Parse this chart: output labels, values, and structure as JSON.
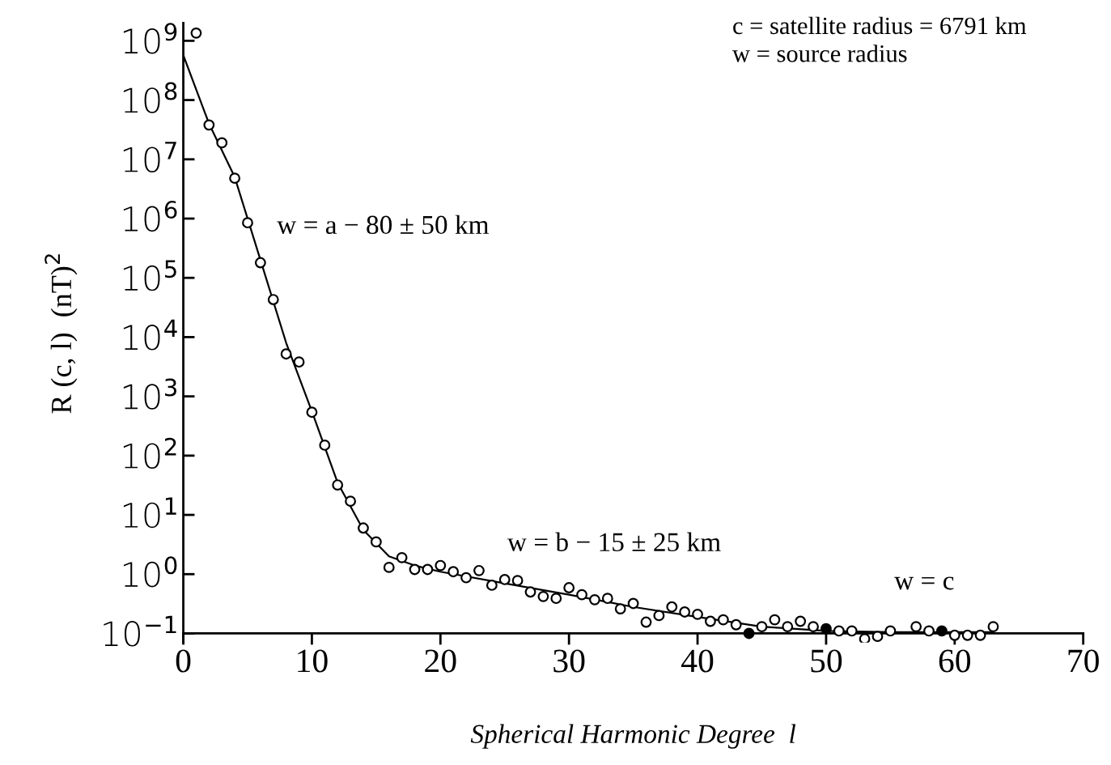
{
  "chart_data": {
    "type": "scatter",
    "xlabel": "Spherical Harmonic Degree  l",
    "ylabel": "R (c, l)  (nT)$^{2}$",
    "log": "y",
    "grid": false,
    "marker": "circle",
    "xlim": [
      0,
      70
    ],
    "xticks": [
      0,
      10,
      20,
      30,
      40,
      50,
      60,
      70
    ],
    "ylim": [
      0.07,
      2000000000.0
    ],
    "yticks": [
      {
        "value": 0.1,
        "label": "10$^{−1}$"
      },
      {
        "value": 1,
        "label": "10$^{0}$"
      },
      {
        "value": 10,
        "label": "10$^{1}$"
      },
      {
        "value": 100,
        "label": "10$^{2}$"
      },
      {
        "value": 1000,
        "label": "10$^{3}$"
      },
      {
        "value": 10000,
        "label": "10$^{4}$"
      },
      {
        "value": 100000,
        "label": "10$^{5}$"
      },
      {
        "value": 1000000,
        "label": "10$^{6}$"
      },
      {
        "value": 10000000,
        "label": "10$^{7}$"
      },
      {
        "value": 100000000,
        "label": "10$^{8}$"
      },
      {
        "value": 1000000000,
        "label": "10$^{9}$"
      }
    ],
    "series": [
      {
        "type": "line",
        "color": "#000000",
        "marker": "none",
        "x": [
          0,
          2,
          4,
          6,
          8,
          10,
          12,
          14,
          16,
          18,
          20,
          25,
          30,
          35,
          40,
          45,
          50,
          55,
          63
        ],
        "values": [
          570000000.0,
          40000000.0,
          5000000.0,
          200000.0,
          8000.0,
          560,
          35,
          5.6,
          2.0,
          1.4,
          1.1,
          0.7,
          0.45,
          0.28,
          0.19,
          0.13,
          0.11,
          0.105,
          0.105
        ]
      },
      {
        "color": "#ffffff",
        "x": [
          1,
          2,
          3,
          4,
          5,
          6,
          7,
          8,
          9,
          10,
          11,
          12,
          13,
          14,
          15,
          16,
          17,
          18,
          19,
          20,
          21,
          22,
          23,
          24,
          25,
          26,
          27,
          28,
          29,
          30,
          31,
          32,
          33,
          34,
          35,
          36,
          37,
          38,
          39,
          40,
          41,
          42,
          43,
          45,
          46,
          47,
          48,
          49,
          51,
          52,
          53,
          54,
          55,
          57,
          58,
          60,
          61,
          62,
          63
        ],
        "values": [
          1350000000.0,
          38000000.0,
          19000000.0,
          4800000.0,
          850000.0,
          180000.0,
          43000.0,
          5200.0,
          3800.0,
          540,
          150,
          32,
          17,
          6.0,
          3.5,
          1.3,
          1.9,
          1.2,
          1.2,
          1.4,
          1.1,
          0.87,
          1.15,
          0.65,
          0.81,
          0.78,
          0.5,
          0.42,
          0.39,
          0.59,
          0.45,
          0.37,
          0.39,
          0.26,
          0.32,
          0.155,
          0.2,
          0.28,
          0.23,
          0.21,
          0.16,
          0.17,
          0.14,
          0.13,
          0.17,
          0.13,
          0.16,
          0.13,
          0.11,
          0.11,
          0.081,
          0.089,
          0.11,
          0.13,
          0.11,
          0.093,
          0.093,
          0.093,
          0.13
        ]
      },
      {
        "color": "#000000",
        "x": [
          44,
          50,
          59
        ],
        "values": [
          0.1,
          0.12,
          0.11
        ]
      }
    ],
    "annotations": [
      "w = a − 80 ± 50 km",
      "w = b − 15 ± 25 km",
      "w = c",
      "c = satellite radius = 6791 km",
      "w = source radius"
    ]
  }
}
